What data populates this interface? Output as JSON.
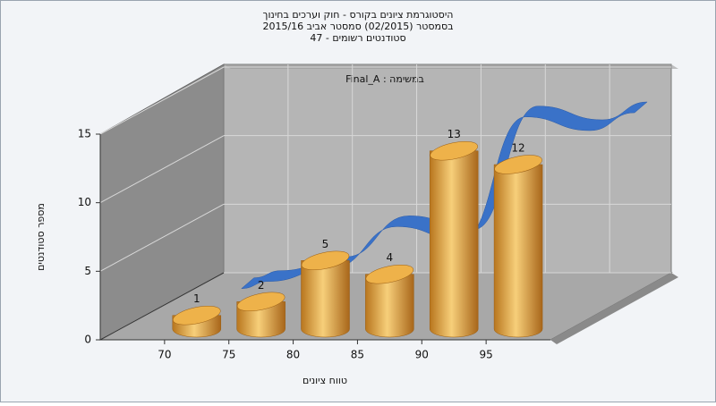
{
  "chart_data": {
    "type": "histogram",
    "title": [
      "היסטוגרמת ציונים בקורס - חוק וערכים בחינוך",
      "בסמסטר (02/2015) סמסטר אביב 2015/16",
      "סטודנטים רשומים - 47"
    ],
    "annotation": "במשימה : Final_A",
    "x_label": "טווח ציונים",
    "y_label": "מספר סטודנטים",
    "bins": [
      70,
      75,
      80,
      85,
      90,
      95,
      100
    ],
    "values": [
      1,
      2,
      5,
      4,
      13,
      12
    ],
    "color": "#e2a640",
    "line_color": "#3a72c8",
    "xlim": [
      65,
      100
    ],
    "xticks": [
      70,
      75,
      80,
      85,
      90,
      95
    ],
    "ylim": [
      0,
      15
    ],
    "yticks": [
      0,
      5,
      10,
      15
    ],
    "grid": true
  }
}
